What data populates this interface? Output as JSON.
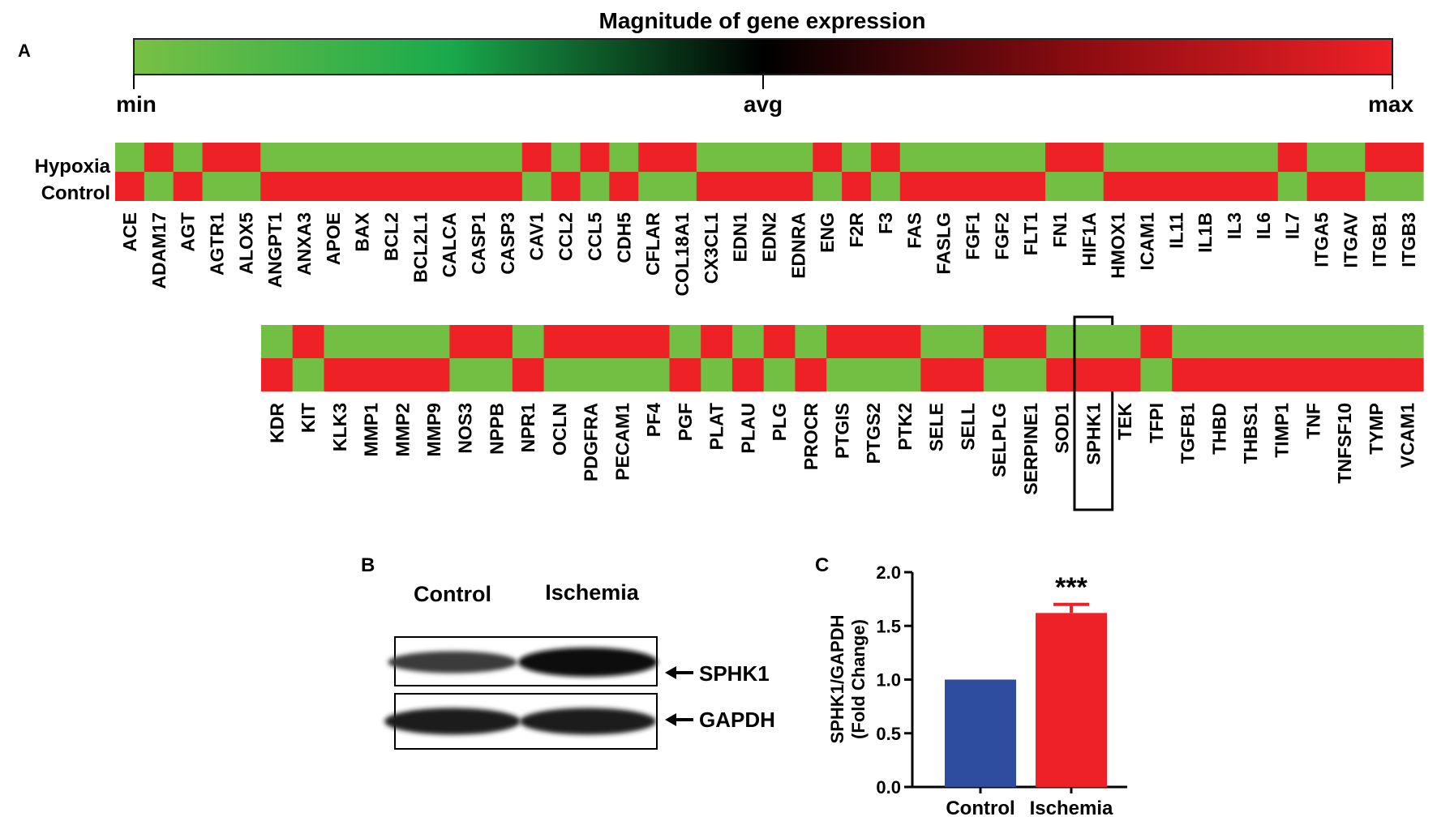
{
  "panels": {
    "a": {
      "label": "A",
      "colorbar": {
        "title": "Magnitude of gene expression",
        "min_label": "min",
        "mid_label": "avg",
        "max_label": "max",
        "stops": [
          "#78c044",
          "#1aaa4c",
          "#000000",
          "#8b0c10",
          "#ee2127"
        ]
      },
      "row_labels": [
        "Hypoxia",
        "Control"
      ]
    },
    "b": {
      "label": "B",
      "lane_labels": [
        "Control",
        "Ischemia"
      ],
      "band_labels": [
        "SPHK1",
        "GAPDH"
      ],
      "relative_intensity": {
        "SPHK1": [
          0.55,
          1.0
        ],
        "GAPDH": [
          0.85,
          0.85
        ]
      }
    },
    "c": {
      "label": "C"
    }
  },
  "colors": {
    "high": "#ee2127",
    "low": "#72bf44",
    "control_bar": "#2f4d9e",
    "ischemia_bar": "#ee2127"
  },
  "chart_data": [
    {
      "type": "heatmap",
      "rows": [
        "Hypoxia",
        "Control"
      ],
      "scale": [
        "min",
        "avg",
        "max"
      ],
      "blocks": [
        {
          "genes": [
            "ACE",
            "ADAM17",
            "AGT",
            "AGTR1",
            "ALOX5",
            "ANGPT1",
            "ANXA3",
            "APOE",
            "BAX",
            "BCL2",
            "BCL2L1",
            "CALCA",
            "CASP1",
            "CASP3",
            "CAV1",
            "CCL2",
            "CCL5",
            "CDH5",
            "CFLAR",
            "COL18A1",
            "CX3CL1",
            "EDN1",
            "EDN2",
            "EDNRA",
            "ENG",
            "F2R",
            "F3",
            "FAS",
            "FASLG",
            "FGF1",
            "FGF2",
            "FLT1",
            "FN1",
            "HIF1A",
            "HMOX1",
            "ICAM1",
            "IL11",
            "IL1B",
            "IL3",
            "IL6",
            "IL7",
            "ITGA5",
            "ITGAV",
            "ITGB1",
            "ITGB3"
          ],
          "hypoxia": [
            "min",
            "max",
            "min",
            "max",
            "max",
            "min",
            "min",
            "min",
            "min",
            "min",
            "min",
            "min",
            "min",
            "min",
            "max",
            "min",
            "max",
            "min",
            "max",
            "max",
            "min",
            "min",
            "min",
            "min",
            "max",
            "min",
            "max",
            "min",
            "min",
            "min",
            "min",
            "min",
            "max",
            "max",
            "min",
            "min",
            "min",
            "min",
            "min",
            "min",
            "max",
            "min",
            "min",
            "max",
            "max"
          ]
        },
        {
          "genes": [
            "KDR",
            "KIT",
            "KLK3",
            "MMP1",
            "MMP2",
            "MMP9",
            "NOS3",
            "NPPB",
            "NPR1",
            "OCLN",
            "PDGFRA",
            "PECAM1",
            "PF4",
            "PGF",
            "PLAT",
            "PLAU",
            "PLG",
            "PROCR",
            "PTGIS",
            "PTGS2",
            "PTK2",
            "SELE",
            "SELL",
            "SELPLG",
            "SERPINE1",
            "SOD1",
            "SPHK1",
            "TEK",
            "TFPI",
            "TGFB1",
            "THBD",
            "THBS1",
            "TIMP1",
            "TNF",
            "TNFSF10",
            "TYMP",
            "VCAM1"
          ],
          "hypoxia": [
            "min",
            "max",
            "min",
            "min",
            "min",
            "min",
            "max",
            "max",
            "min",
            "max",
            "max",
            "max",
            "max",
            "min",
            "max",
            "min",
            "max",
            "min",
            "max",
            "max",
            "max",
            "min",
            "min",
            "max",
            "max",
            "min",
            "min",
            "min",
            "max",
            "min",
            "min",
            "min",
            "min",
            "min",
            "min",
            "min",
            "min"
          ]
        }
      ],
      "highlight": "SPHK1"
    },
    {
      "type": "bar",
      "categories": [
        "Control",
        "Ischemia"
      ],
      "values": [
        1.0,
        1.62
      ],
      "errors": [
        0,
        0.08
      ],
      "annotations": [
        "",
        "***"
      ],
      "ylabel": "SPHK1/GAPDH\n(Fold Change)",
      "ylim": [
        0,
        2.0
      ],
      "yticks": [
        "0.0",
        "0.5",
        "1.0",
        "1.5",
        "2.0"
      ]
    }
  ]
}
